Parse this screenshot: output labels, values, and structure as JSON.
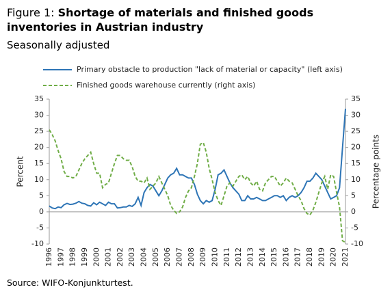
{
  "figure_label": "Figure 1:",
  "source": "Source: WIFO-Konjunkturtest.",
  "chart_data": {
    "type": "line",
    "title": "Shortage of materials and finished goods inventories in Austrian industry",
    "subtitle": "Seasonally adjusted",
    "ylabel": "Percent",
    "y2label": "Percentage points",
    "ylim": [
      -10,
      35
    ],
    "yticks": [
      -10,
      -5,
      0,
      5,
      10,
      15,
      20,
      25,
      30,
      35
    ],
    "y2lim": [
      -10,
      35
    ],
    "y2ticks": [
      -10,
      -5,
      0,
      5,
      10,
      15,
      20,
      25,
      30,
      35
    ],
    "legend": "top",
    "categories": [
      "1996",
      null,
      null,
      null,
      "1997",
      null,
      null,
      null,
      "1998",
      null,
      null,
      null,
      "1999",
      null,
      null,
      null,
      "2000",
      null,
      null,
      null,
      "2001",
      null,
      null,
      null,
      "2002",
      null,
      null,
      null,
      "2003",
      null,
      null,
      null,
      "2004",
      null,
      null,
      null,
      "2005",
      null,
      null,
      null,
      "2006",
      null,
      null,
      null,
      "2007",
      null,
      null,
      null,
      "2008",
      null,
      null,
      null,
      "2009",
      null,
      null,
      null,
      "2010",
      null,
      null,
      null,
      "2011",
      null,
      null,
      null,
      "2012",
      null,
      null,
      null,
      "2013",
      null,
      null,
      null,
      "2014",
      null,
      null,
      null,
      "2015",
      null,
      null,
      null,
      "2016",
      null,
      null,
      null,
      "2017",
      null,
      null,
      null,
      "2018",
      null,
      null,
      null,
      "2019",
      null,
      null,
      null,
      "2020",
      null,
      null,
      null,
      "2021"
    ],
    "series": [
      {
        "name": "Primary obstacle to production \"lack of material or capacity\" (left axis)",
        "color": "#2e75b6",
        "dash": false,
        "axis": "y",
        "values": [
          1.8,
          1.2,
          1.0,
          1.5,
          1.3,
          2.2,
          2.6,
          2.3,
          2.4,
          2.7,
          3.2,
          2.7,
          2.5,
          2.0,
          1.8,
          2.8,
          2.2,
          3.0,
          2.5,
          2.0,
          3.0,
          2.5,
          2.5,
          1.2,
          1.3,
          1.5,
          1.5,
          2.0,
          1.7,
          2.5,
          4.5,
          2.0,
          6.0,
          7.5,
          8.5,
          8.0,
          6.5,
          5.0,
          6.5,
          8.5,
          10.5,
          11.5,
          12.0,
          13.5,
          11.5,
          11.5,
          11.0,
          10.5,
          10.5,
          8.5,
          5.5,
          3.5,
          2.5,
          3.5,
          3.0,
          3.5,
          7.0,
          11.5,
          12.0,
          13.0,
          11.0,
          9.0,
          7.5,
          6.5,
          5.5,
          3.5,
          3.5,
          5.0,
          4.0,
          4.0,
          4.5,
          4.0,
          3.5,
          3.5,
          4.0,
          4.5,
          5.0,
          5.0,
          4.5,
          5.0,
          3.5,
          4.5,
          5.0,
          4.5,
          5.0,
          6.0,
          7.5,
          9.5,
          9.5,
          10.5,
          12.0,
          11.0,
          10.0,
          8.0,
          6.0,
          4.0,
          4.5,
          5.0,
          7.5,
          20.0,
          32.0
        ]
      },
      {
        "name": "Finished goods warehouse currently (right axis)",
        "color": "#70ad47",
        "dash": true,
        "axis": "y2",
        "values": [
          25.5,
          24,
          22,
          19,
          16.5,
          12.5,
          11,
          11,
          10.5,
          11,
          13,
          15,
          16.5,
          17.5,
          18.5,
          15,
          12,
          12,
          7.5,
          8.5,
          9,
          12,
          15,
          17.5,
          17.5,
          16.5,
          16,
          16,
          14,
          11,
          9.5,
          9.5,
          9,
          10.5,
          7,
          8,
          9,
          11,
          9,
          7,
          5,
          2,
          0.5,
          -0.5,
          0,
          1.5,
          4.5,
          6.5,
          7.5,
          11,
          15,
          21,
          21.5,
          18.5,
          13.5,
          10,
          6,
          3.5,
          2,
          5,
          8,
          9,
          8,
          9.5,
          11,
          11.5,
          10,
          11,
          9,
          8,
          9.5,
          7,
          6.5,
          9,
          10,
          11,
          11,
          9.5,
          8,
          9,
          10.5,
          9.5,
          9,
          7,
          5,
          3.5,
          1,
          -0.5,
          -1,
          0.5,
          3,
          6,
          9,
          11,
          7,
          11.5,
          11,
          6,
          1.5,
          -9,
          -9.5
        ]
      }
    ]
  }
}
